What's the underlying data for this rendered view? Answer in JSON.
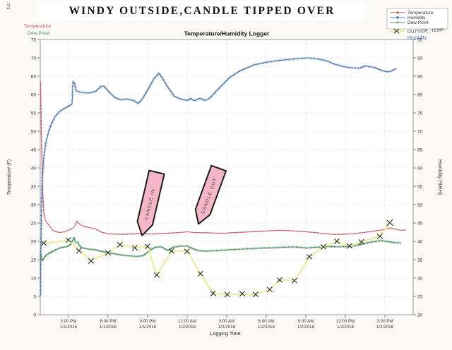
{
  "page": {
    "number": "2"
  },
  "title": "WINDY OUTSIDE,CANDLE TIPPED OVER",
  "subtitle": "Temperature/Humidity Logger",
  "axis_headers": {
    "temperature": "Temperature",
    "dew_point": "Dew Point",
    "humidity": "Humidity"
  },
  "legend": {
    "items": [
      {
        "label": "Temperature",
        "series": "temperature"
      },
      {
        "label": "Humidity",
        "series": "humidity"
      },
      {
        "label": "Dew Point",
        "series": "dew_point"
      }
    ],
    "handwritten_label": "OUTSIDE, TEMP"
  },
  "annotations": [
    {
      "label": "CANDLE IN"
    },
    {
      "label": "CANDLE OUT"
    }
  ],
  "colors": {
    "temperature": "#cb5560",
    "humidity": "#4f7ab4",
    "dew_point": "#4a8f60",
    "outside_temp_highlight": "#eeeb9d",
    "x_mark": "#2b2b2b",
    "annotation_fill": "#f6b6c9",
    "annotation_stroke": "#1c1c1c",
    "grid": "#c8c8c8"
  },
  "chart_data": {
    "type": "line",
    "title": "Temperature/Humidity Logger",
    "grid": true,
    "legend_position": "top-right",
    "x_axis": {
      "label": "Logging Time",
      "unit": "hours after 3:00 PM 1/1/2016",
      "min": -2.14,
      "max": 26.14,
      "ticks": [
        {
          "t": 0,
          "time": "3:00 PM",
          "date": "1/1/2016"
        },
        {
          "t": 3,
          "time": "6:00 PM",
          "date": "1/1/2016"
        },
        {
          "t": 6,
          "time": "9:00 PM",
          "date": "1/1/2016"
        },
        {
          "t": 9,
          "time": "12:00 AM",
          "date": "1/2/2016"
        },
        {
          "t": 12,
          "time": "3:00 AM",
          "date": "1/2/2016"
        },
        {
          "t": 15,
          "time": "6:00 AM",
          "date": "1/2/2016"
        },
        {
          "t": 18,
          "time": "9:00 AM",
          "date": "1/2/2016"
        },
        {
          "t": 21,
          "time": "12:00 PM",
          "date": "1/2/2016"
        },
        {
          "t": 24,
          "time": "3:00 PM",
          "date": "1/2/2016"
        }
      ]
    },
    "y_left": {
      "label": "Temperature (F)",
      "min": 0,
      "max": 75,
      "step": 5
    },
    "y_right": {
      "label": "Humidity (%RH)",
      "min": 20,
      "max": 95,
      "step": 5
    },
    "series": [
      {
        "name": "Temperature",
        "axis": "left",
        "color": "#cb5560",
        "marker": "dot",
        "points": [
          [
            -2.12,
            63.5
          ],
          [
            -2.09,
            57
          ],
          [
            -2.06,
            50
          ],
          [
            -2.0,
            41
          ],
          [
            -1.95,
            33
          ],
          [
            -1.87,
            28
          ],
          [
            -1.77,
            26
          ],
          [
            -1.66,
            25.2
          ],
          [
            -1.45,
            24.2
          ],
          [
            -1.18,
            23.0
          ],
          [
            -0.91,
            22.6
          ],
          [
            -0.64,
            22.4
          ],
          [
            -0.32,
            22.6
          ],
          [
            -0.11,
            22.9
          ],
          [
            0.32,
            23.5
          ],
          [
            0.54,
            24.5
          ],
          [
            0.64,
            25.5
          ],
          [
            0.86,
            24.7
          ],
          [
            1.13,
            24.1
          ],
          [
            1.5,
            23.8
          ],
          [
            2.04,
            23.4
          ],
          [
            2.57,
            22.4
          ],
          [
            3.21,
            22.0
          ],
          [
            4.18,
            21.9
          ],
          [
            5.25,
            22.1
          ],
          [
            6.32,
            22.0
          ],
          [
            7.39,
            22.2
          ],
          [
            8.46,
            22.4
          ],
          [
            9.0,
            22.6
          ],
          [
            9.53,
            22.4
          ],
          [
            10.6,
            22.3
          ],
          [
            11.68,
            22.2
          ],
          [
            12.75,
            22.4
          ],
          [
            13.82,
            22.6
          ],
          [
            14.89,
            22.8
          ],
          [
            15.96,
            23.0
          ],
          [
            16.77,
            22.9
          ],
          [
            17.57,
            22.7
          ],
          [
            18.37,
            22.5
          ],
          [
            19.18,
            22.2
          ],
          [
            19.98,
            21.9
          ],
          [
            20.78,
            21.9
          ],
          [
            21.59,
            22.1
          ],
          [
            22.39,
            22.4
          ],
          [
            23.2,
            22.8
          ],
          [
            23.89,
            23.2
          ],
          [
            24.43,
            23.7
          ],
          [
            24.8,
            23.3
          ],
          [
            25.23,
            23.0
          ],
          [
            25.55,
            23.1
          ]
        ]
      },
      {
        "name": "Humidity",
        "axis": "right",
        "color": "#4f7ab4",
        "marker": "plus",
        "points": [
          [
            -2.12,
            25.4
          ],
          [
            -2.09,
            38
          ],
          [
            -2.04,
            50
          ],
          [
            -1.98,
            57
          ],
          [
            -1.87,
            63
          ],
          [
            -1.71,
            67
          ],
          [
            -1.5,
            70
          ],
          [
            -1.29,
            72
          ],
          [
            -1.02,
            74
          ],
          [
            -0.7,
            75.3
          ],
          [
            -0.27,
            76.3
          ],
          [
            0.11,
            77.0
          ],
          [
            0.27,
            77.5
          ],
          [
            0.34,
            83.5
          ],
          [
            0.48,
            83.0
          ],
          [
            0.59,
            81.0
          ],
          [
            0.96,
            80.6
          ],
          [
            1.5,
            80.4
          ],
          [
            2.04,
            80.8
          ],
          [
            2.46,
            82.2
          ],
          [
            2.68,
            82.3
          ],
          [
            3.11,
            80.6
          ],
          [
            3.48,
            79.3
          ],
          [
            3.91,
            78.6
          ],
          [
            4.45,
            78.8
          ],
          [
            4.98,
            78.3
          ],
          [
            5.3,
            77.6
          ],
          [
            5.62,
            78.9
          ],
          [
            6.05,
            81.5
          ],
          [
            6.48,
            84.3
          ],
          [
            6.86,
            85.8
          ],
          [
            7.12,
            84.5
          ],
          [
            7.5,
            82.2
          ],
          [
            8.03,
            79.5
          ],
          [
            8.57,
            78.7
          ],
          [
            9.0,
            78.4
          ],
          [
            9.27,
            78.9
          ],
          [
            9.53,
            78.3
          ],
          [
            9.96,
            79.0
          ],
          [
            10.34,
            78.4
          ],
          [
            10.71,
            79.0
          ],
          [
            11.41,
            81.7
          ],
          [
            12.21,
            84.6
          ],
          [
            13.02,
            86.5
          ],
          [
            14.09,
            88.1
          ],
          [
            15.16,
            88.9
          ],
          [
            16.23,
            89.4
          ],
          [
            17.3,
            89.8
          ],
          [
            18.21,
            90.0
          ],
          [
            18.91,
            89.7
          ],
          [
            19.55,
            89.2
          ],
          [
            20.25,
            88.2
          ],
          [
            20.89,
            87.6
          ],
          [
            21.43,
            87.3
          ],
          [
            22.12,
            87.2
          ],
          [
            22.5,
            87.8
          ],
          [
            23.2,
            87.4
          ],
          [
            23.73,
            86.6
          ],
          [
            24.16,
            86.2
          ],
          [
            24.48,
            86.4
          ],
          [
            24.8,
            87.0
          ]
        ]
      },
      {
        "name": "Dew Point",
        "axis": "left",
        "color": "#4a8f60",
        "marker": "plus",
        "points": [
          [
            -2.12,
            16.5
          ],
          [
            -2.04,
            15.0
          ],
          [
            -1.98,
            14.8
          ],
          [
            -1.71,
            16.2
          ],
          [
            -1.45,
            16.8
          ],
          [
            -1.18,
            17.3
          ],
          [
            -0.91,
            17.8
          ],
          [
            -0.64,
            18.2
          ],
          [
            -0.11,
            18.6
          ],
          [
            0.16,
            19.2
          ],
          [
            0.43,
            21.0
          ],
          [
            0.54,
            19.6
          ],
          [
            0.7,
            19.8
          ],
          [
            0.8,
            19.0
          ],
          [
            0.96,
            18.3
          ],
          [
            1.5,
            17.9
          ],
          [
            2.04,
            17.7
          ],
          [
            2.57,
            17.2
          ],
          [
            3.11,
            16.9
          ],
          [
            3.64,
            16.5
          ],
          [
            4.18,
            16.2
          ],
          [
            4.71,
            16.0
          ],
          [
            5.25,
            15.9
          ],
          [
            5.68,
            16.1
          ],
          [
            6.16,
            17.5
          ],
          [
            6.59,
            18.4
          ],
          [
            7.02,
            18.5
          ],
          [
            7.55,
            17.5
          ],
          [
            7.93,
            18.4
          ],
          [
            8.46,
            18.7
          ],
          [
            9.0,
            18.7
          ],
          [
            9.37,
            18.1
          ],
          [
            9.8,
            17.5
          ],
          [
            10.34,
            17.3
          ],
          [
            10.87,
            17.4
          ],
          [
            11.68,
            17.6
          ],
          [
            12.75,
            17.8
          ],
          [
            13.82,
            18.0
          ],
          [
            14.89,
            18.2
          ],
          [
            15.96,
            18.3
          ],
          [
            17.03,
            18.5
          ],
          [
            18.1,
            18.2
          ],
          [
            18.91,
            18.4
          ],
          [
            19.71,
            18.6
          ],
          [
            20.52,
            18.5
          ],
          [
            21.32,
            18.6
          ],
          [
            22.12,
            19.1
          ],
          [
            22.93,
            19.8
          ],
          [
            23.73,
            20.2
          ],
          [
            24.27,
            19.9
          ],
          [
            24.8,
            19.6
          ],
          [
            25.18,
            19.6
          ]
        ]
      },
      {
        "name": "Outside Temp (hand-drawn)",
        "axis": "left",
        "color": "#eeeb9d",
        "marker": "x",
        "points": [
          [
            -1.87,
            19.4
          ],
          [
            0,
            20.3
          ],
          [
            0.8,
            17.5
          ],
          [
            1.71,
            14.8
          ],
          [
            3.0,
            16.8
          ],
          [
            3.91,
            19.1
          ],
          [
            5.03,
            18.3
          ],
          [
            6.0,
            18.5
          ],
          [
            6.7,
            10.8
          ],
          [
            7.82,
            17.4
          ],
          [
            9.0,
            17.4
          ],
          [
            10.02,
            11.1
          ],
          [
            10.98,
            5.8
          ],
          [
            12.05,
            5.6
          ],
          [
            13.18,
            5.6
          ],
          [
            14.19,
            5.5
          ],
          [
            15.27,
            6.9
          ],
          [
            16.02,
            9.6
          ],
          [
            17.14,
            9.2
          ],
          [
            18.27,
            15.8
          ],
          [
            19.34,
            18.6
          ],
          [
            20.36,
            19.9
          ],
          [
            21.32,
            18.7
          ],
          [
            22.23,
            19.9
          ],
          [
            23.62,
            21.5
          ],
          [
            24.37,
            25.0
          ]
        ]
      }
    ]
  }
}
